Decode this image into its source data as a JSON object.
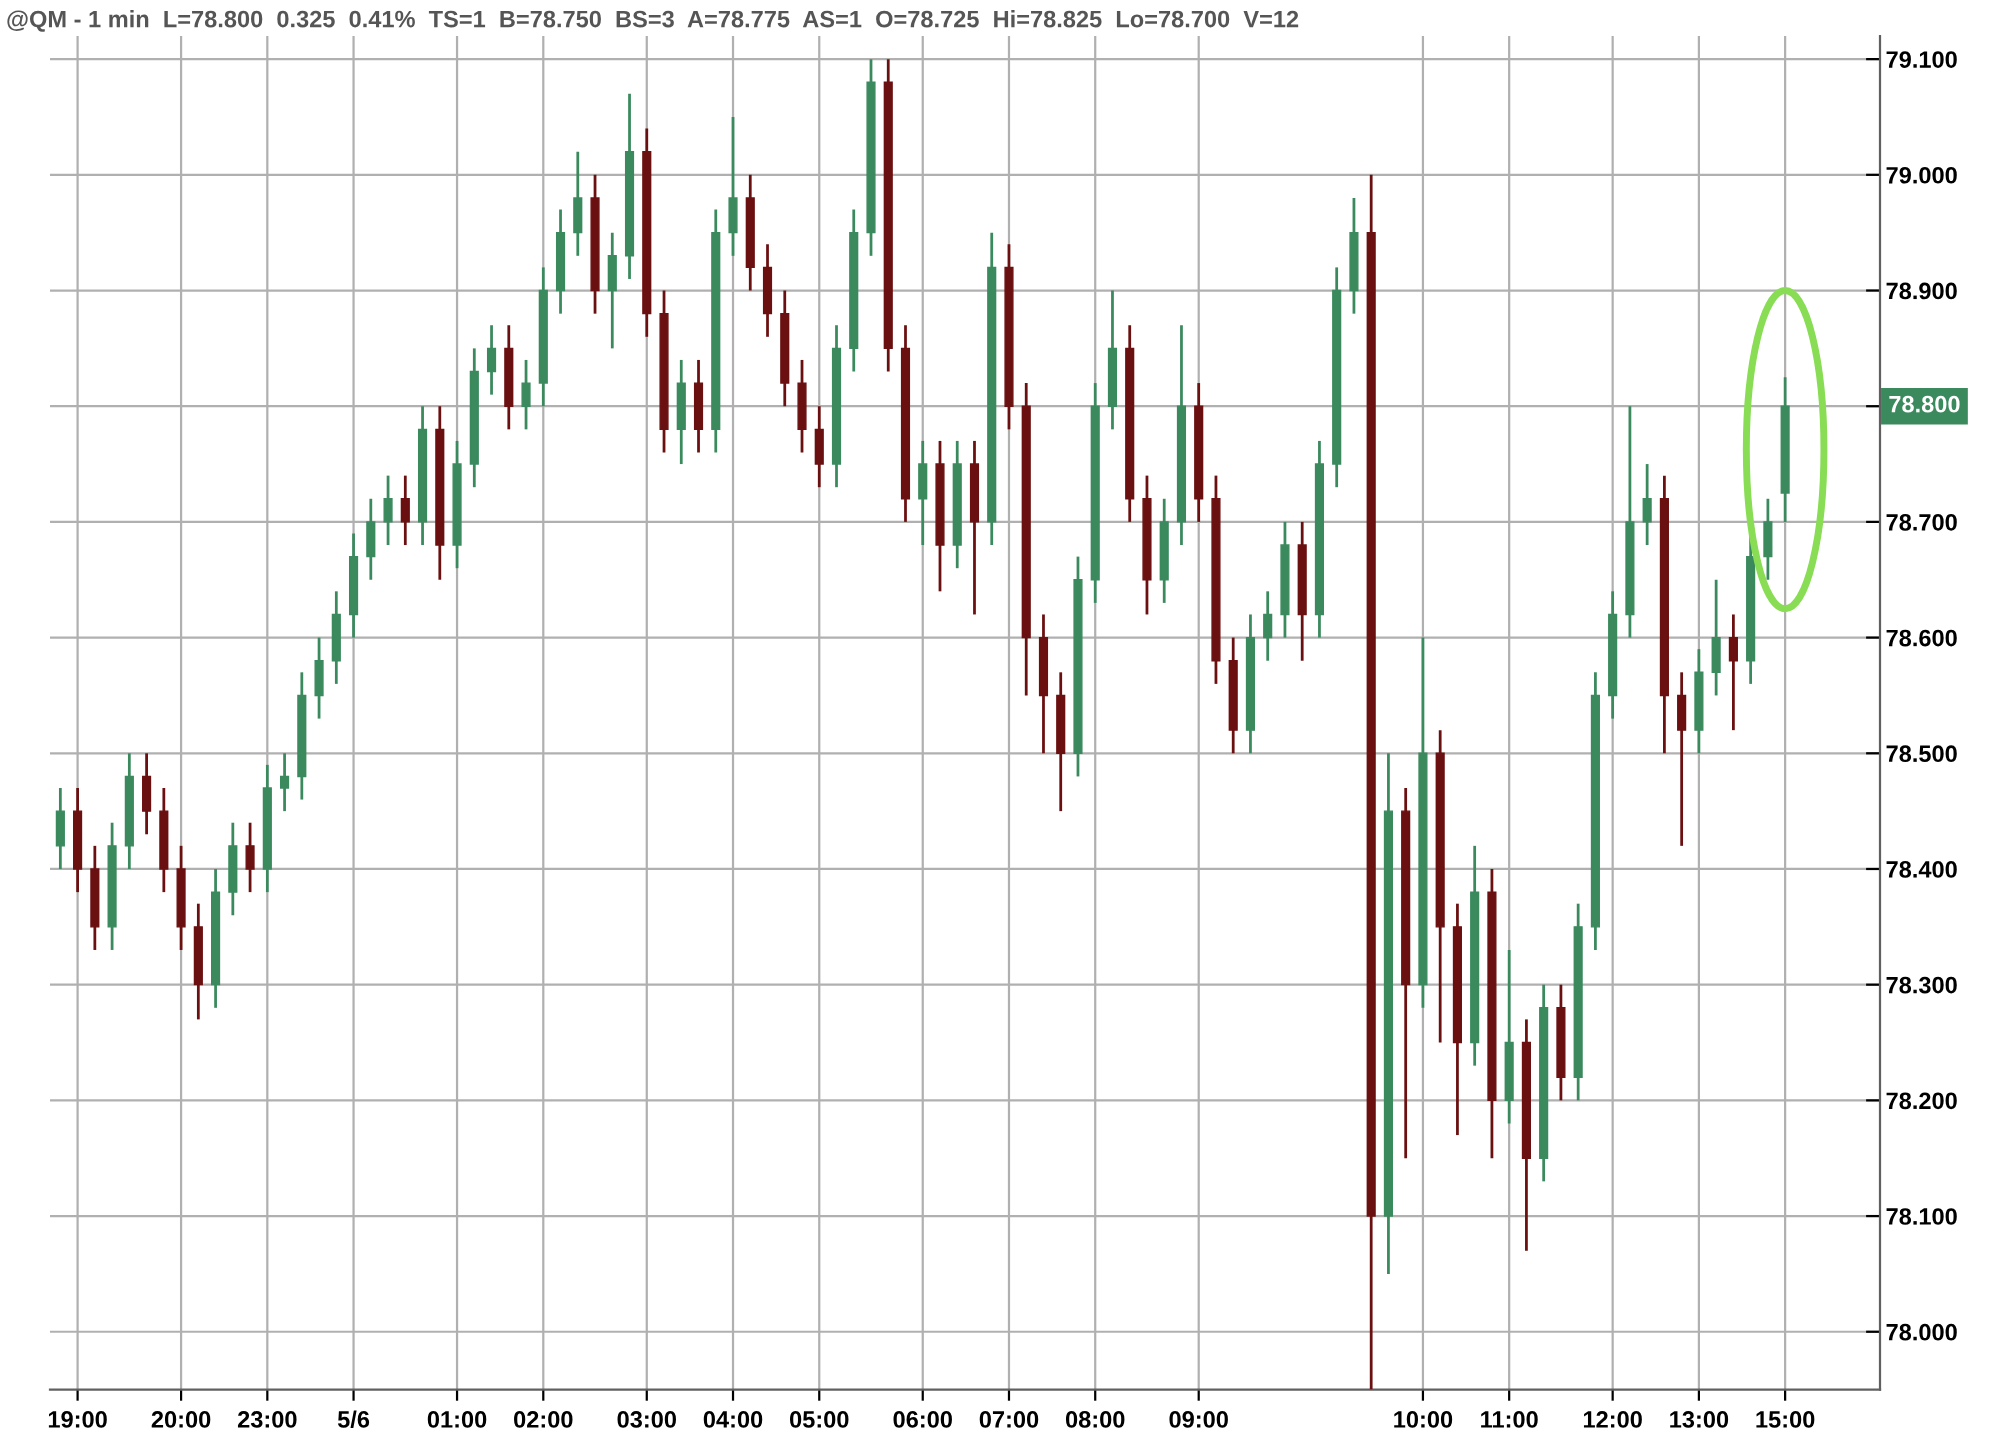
{
  "chart_data": {
    "type": "candlestick",
    "title": "@QM - 1 min  L=78.800  0.325  0.41%  TS=1  B=78.750  BS=3  A=78.775  AS=1  O=78.725  Hi=78.825  Lo=78.700  V=12",
    "categories": [
      null,
      "19:00",
      null,
      null,
      null,
      null,
      null,
      "20:00",
      null,
      null,
      null,
      null,
      "23:00",
      null,
      null,
      null,
      null,
      "5/6",
      null,
      null,
      null,
      null,
      null,
      "01:00",
      null,
      null,
      null,
      null,
      "02:00",
      null,
      null,
      null,
      null,
      null,
      "03:00",
      null,
      null,
      null,
      null,
      "04:00",
      null,
      null,
      null,
      null,
      "05:00",
      null,
      null,
      null,
      null,
      null,
      "06:00",
      null,
      null,
      null,
      null,
      "07:00",
      null,
      null,
      null,
      null,
      "08:00",
      null,
      null,
      null,
      null,
      null,
      "09:00",
      null,
      null,
      null,
      null,
      null,
      null,
      null,
      null,
      null,
      null,
      null,
      null,
      "10:00",
      null,
      null,
      null,
      null,
      "11:00",
      null,
      null,
      null,
      null,
      null,
      "12:00",
      null,
      null,
      null,
      null,
      "13:00",
      null,
      null,
      null,
      null,
      "15:00"
    ],
    "ohlc": [
      [
        78.42,
        78.47,
        78.4,
        78.45
      ],
      [
        78.45,
        78.47,
        78.38,
        78.4
      ],
      [
        78.4,
        78.42,
        78.33,
        78.35
      ],
      [
        78.35,
        78.44,
        78.33,
        78.42
      ],
      [
        78.42,
        78.5,
        78.4,
        78.48
      ],
      [
        78.48,
        78.5,
        78.43,
        78.45
      ],
      [
        78.45,
        78.47,
        78.38,
        78.4
      ],
      [
        78.4,
        78.42,
        78.33,
        78.35
      ],
      [
        78.35,
        78.37,
        78.27,
        78.3
      ],
      [
        78.3,
        78.4,
        78.28,
        78.38
      ],
      [
        78.38,
        78.44,
        78.36,
        78.42
      ],
      [
        78.42,
        78.44,
        78.38,
        78.4
      ],
      [
        78.4,
        78.49,
        78.38,
        78.47
      ],
      [
        78.47,
        78.5,
        78.45,
        78.48
      ],
      [
        78.48,
        78.57,
        78.46,
        78.55
      ],
      [
        78.55,
        78.6,
        78.53,
        78.58
      ],
      [
        78.58,
        78.64,
        78.56,
        78.62
      ],
      [
        78.62,
        78.69,
        78.6,
        78.67
      ],
      [
        78.67,
        78.72,
        78.65,
        78.7
      ],
      [
        78.7,
        78.74,
        78.68,
        78.72
      ],
      [
        78.72,
        78.74,
        78.68,
        78.7
      ],
      [
        78.7,
        78.8,
        78.68,
        78.78
      ],
      [
        78.78,
        78.8,
        78.65,
        78.68
      ],
      [
        78.68,
        78.77,
        78.66,
        78.75
      ],
      [
        78.75,
        78.85,
        78.73,
        78.83
      ],
      [
        78.83,
        78.87,
        78.81,
        78.85
      ],
      [
        78.85,
        78.87,
        78.78,
        78.8
      ],
      [
        78.8,
        78.84,
        78.78,
        78.82
      ],
      [
        78.82,
        78.92,
        78.8,
        78.9
      ],
      [
        78.9,
        78.97,
        78.88,
        78.95
      ],
      [
        78.95,
        79.02,
        78.93,
        78.98
      ],
      [
        78.98,
        79.0,
        78.88,
        78.9
      ],
      [
        78.9,
        78.95,
        78.85,
        78.93
      ],
      [
        78.93,
        79.07,
        78.91,
        79.02
      ],
      [
        79.02,
        79.04,
        78.86,
        78.88
      ],
      [
        78.88,
        78.9,
        78.76,
        78.78
      ],
      [
        78.78,
        78.84,
        78.75,
        78.82
      ],
      [
        78.82,
        78.84,
        78.76,
        78.78
      ],
      [
        78.78,
        78.97,
        78.76,
        78.95
      ],
      [
        78.95,
        79.05,
        78.93,
        78.98
      ],
      [
        78.98,
        79.0,
        78.9,
        78.92
      ],
      [
        78.92,
        78.94,
        78.86,
        78.88
      ],
      [
        78.88,
        78.9,
        78.8,
        78.82
      ],
      [
        78.82,
        78.84,
        78.76,
        78.78
      ],
      [
        78.78,
        78.8,
        78.73,
        78.75
      ],
      [
        78.75,
        78.87,
        78.73,
        78.85
      ],
      [
        78.85,
        78.97,
        78.83,
        78.95
      ],
      [
        78.95,
        79.1,
        78.93,
        79.08
      ],
      [
        79.08,
        79.1,
        78.83,
        78.85
      ],
      [
        78.85,
        78.87,
        78.7,
        78.72
      ],
      [
        78.72,
        78.77,
        78.68,
        78.75
      ],
      [
        78.75,
        78.77,
        78.64,
        78.68
      ],
      [
        78.68,
        78.77,
        78.66,
        78.75
      ],
      [
        78.75,
        78.77,
        78.62,
        78.7
      ],
      [
        78.7,
        78.95,
        78.68,
        78.92
      ],
      [
        78.92,
        78.94,
        78.78,
        78.8
      ],
      [
        78.8,
        78.82,
        78.55,
        78.6
      ],
      [
        78.6,
        78.62,
        78.5,
        78.55
      ],
      [
        78.55,
        78.57,
        78.45,
        78.5
      ],
      [
        78.5,
        78.67,
        78.48,
        78.65
      ],
      [
        78.65,
        78.82,
        78.63,
        78.8
      ],
      [
        78.8,
        78.9,
        78.78,
        78.85
      ],
      [
        78.85,
        78.87,
        78.7,
        78.72
      ],
      [
        78.72,
        78.74,
        78.62,
        78.65
      ],
      [
        78.65,
        78.72,
        78.63,
        78.7
      ],
      [
        78.7,
        78.87,
        78.68,
        78.8
      ],
      [
        78.8,
        78.82,
        78.7,
        78.72
      ],
      [
        78.72,
        78.74,
        78.56,
        78.58
      ],
      [
        78.58,
        78.6,
        78.5,
        78.52
      ],
      [
        78.52,
        78.62,
        78.5,
        78.6
      ],
      [
        78.6,
        78.64,
        78.58,
        78.62
      ],
      [
        78.62,
        78.7,
        78.6,
        78.68
      ],
      [
        78.68,
        78.7,
        78.58,
        78.62
      ],
      [
        78.62,
        78.77,
        78.6,
        78.75
      ],
      [
        78.75,
        78.92,
        78.73,
        78.9
      ],
      [
        78.9,
        78.98,
        78.88,
        78.95
      ],
      [
        78.95,
        79.0,
        77.95,
        78.1
      ],
      [
        78.1,
        78.5,
        78.05,
        78.45
      ],
      [
        78.45,
        78.47,
        78.15,
        78.3
      ],
      [
        78.3,
        78.6,
        78.28,
        78.5
      ],
      [
        78.5,
        78.52,
        78.25,
        78.35
      ],
      [
        78.35,
        78.37,
        78.17,
        78.25
      ],
      [
        78.25,
        78.42,
        78.23,
        78.38
      ],
      [
        78.38,
        78.4,
        78.15,
        78.2
      ],
      [
        78.2,
        78.33,
        78.18,
        78.25
      ],
      [
        78.25,
        78.27,
        78.07,
        78.15
      ],
      [
        78.15,
        78.3,
        78.13,
        78.28
      ],
      [
        78.28,
        78.3,
        78.2,
        78.22
      ],
      [
        78.22,
        78.37,
        78.2,
        78.35
      ],
      [
        78.35,
        78.57,
        78.33,
        78.55
      ],
      [
        78.55,
        78.64,
        78.53,
        78.62
      ],
      [
        78.62,
        78.8,
        78.6,
        78.7
      ],
      [
        78.7,
        78.75,
        78.68,
        78.72
      ],
      [
        78.72,
        78.74,
        78.5,
        78.55
      ],
      [
        78.55,
        78.57,
        78.42,
        78.52
      ],
      [
        78.52,
        78.59,
        78.5,
        78.57
      ],
      [
        78.57,
        78.65,
        78.55,
        78.6
      ],
      [
        78.6,
        78.62,
        78.52,
        78.58
      ],
      [
        78.58,
        78.69,
        78.56,
        78.67
      ],
      [
        78.67,
        78.72,
        78.65,
        78.7
      ],
      [
        78.725,
        78.825,
        78.7,
        78.8
      ]
    ],
    "colors": [
      "#3b8a5e",
      "#6b1010",
      "#6b1010",
      "#3b8a5e",
      "#3b8a5e",
      "#6b1010",
      "#6b1010",
      "#6b1010",
      "#6b1010",
      "#3b8a5e",
      "#3b8a5e",
      "#6b1010",
      "#3b8a5e",
      "#3b8a5e",
      "#3b8a5e",
      "#3b8a5e",
      "#3b8a5e",
      "#3b8a5e",
      "#3b8a5e",
      "#3b8a5e",
      "#6b1010",
      "#3b8a5e",
      "#6b1010",
      "#3b8a5e",
      "#3b8a5e",
      "#3b8a5e",
      "#6b1010",
      "#3b8a5e",
      "#3b8a5e",
      "#3b8a5e",
      "#3b8a5e",
      "#6b1010",
      "#3b8a5e",
      "#3b8a5e",
      "#6b1010",
      "#6b1010",
      "#3b8a5e",
      "#6b1010",
      "#3b8a5e",
      "#3b8a5e",
      "#6b1010",
      "#6b1010",
      "#6b1010",
      "#6b1010",
      "#6b1010",
      "#3b8a5e",
      "#3b8a5e",
      "#3b8a5e",
      "#6b1010",
      "#6b1010",
      "#3b8a5e",
      "#6b1010",
      "#3b8a5e",
      "#6b1010",
      "#3b8a5e",
      "#6b1010",
      "#6b1010",
      "#6b1010",
      "#6b1010",
      "#3b8a5e",
      "#3b8a5e",
      "#3b8a5e",
      "#6b1010",
      "#6b1010",
      "#3b8a5e",
      "#3b8a5e",
      "#6b1010",
      "#6b1010",
      "#6b1010",
      "#3b8a5e",
      "#3b8a5e",
      "#3b8a5e",
      "#6b1010",
      "#3b8a5e",
      "#3b8a5e",
      "#3b8a5e",
      "#6b1010",
      "#3b8a5e",
      "#6b1010",
      "#3b8a5e",
      "#6b1010",
      "#6b1010",
      "#3b8a5e",
      "#6b1010",
      "#3b8a5e",
      "#6b1010",
      "#3b8a5e",
      "#6b1010",
      "#3b8a5e",
      "#3b8a5e",
      "#3b8a5e",
      "#3b8a5e",
      "#3b8a5e",
      "#6b1010",
      "#6b1010",
      "#3b8a5e",
      "#3b8a5e",
      "#6b1010",
      "#3b8a5e",
      "#3b8a5e",
      "#3b8a5e"
    ],
    "ylim": [
      77.95,
      79.12
    ],
    "yticks": [
      {
        "value": 78.0,
        "label": "78.000"
      },
      {
        "value": 78.1,
        "label": "78.100"
      },
      {
        "value": 78.2,
        "label": "78.200"
      },
      {
        "value": 78.3,
        "label": "78.300"
      },
      {
        "value": 78.4,
        "label": "78.400"
      },
      {
        "value": 78.5,
        "label": "78.500"
      },
      {
        "value": 78.6,
        "label": "78.600"
      },
      {
        "value": 78.7,
        "label": "78.700"
      },
      {
        "value": 78.8,
        "label": null
      },
      {
        "value": 78.9,
        "label": "78.900"
      },
      {
        "value": 79.0,
        "label": "79.000"
      },
      {
        "value": 79.1,
        "label": "79.100"
      }
    ],
    "grid": true,
    "annotations": [
      "78.800"
    ]
  }
}
